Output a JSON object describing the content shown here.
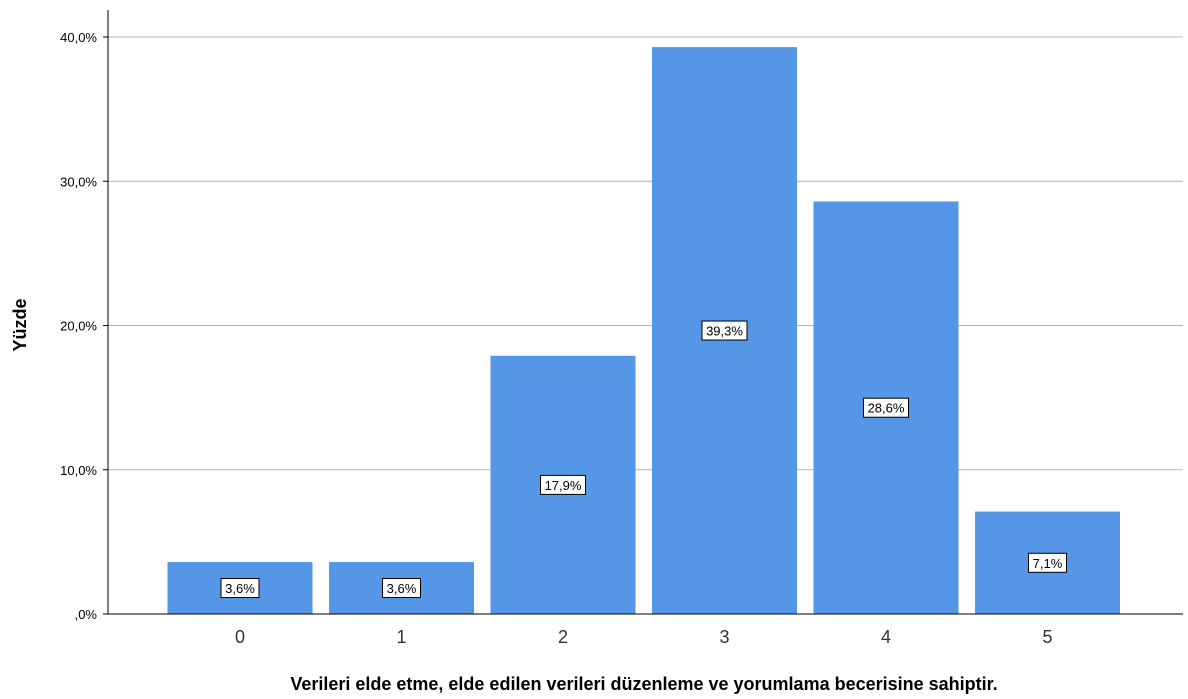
{
  "chart_data": {
    "type": "bar",
    "categories": [
      "0",
      "1",
      "2",
      "3",
      "4",
      "5"
    ],
    "values": [
      3.6,
      3.6,
      17.9,
      39.3,
      28.6,
      7.1
    ],
    "data_labels": [
      "3,6%",
      "3,6%",
      "17,9%",
      "39,3%",
      "28,6%",
      "7,1%"
    ],
    "xlabel": "Verileri elde etme, elde edilen verileri düzenleme ve yorumlama becerisine sahiptir.",
    "ylabel": "Yüzde",
    "ylim": [
      0,
      40
    ],
    "yticks": [
      0,
      10,
      20,
      30,
      40
    ],
    "ytick_labels": [
      ",0%",
      "10,0%",
      "20,0%",
      "30,0%",
      "40,0%"
    ],
    "grid": true,
    "bar_color": "#5596e6",
    "grid_color": "#b3b3b3"
  }
}
